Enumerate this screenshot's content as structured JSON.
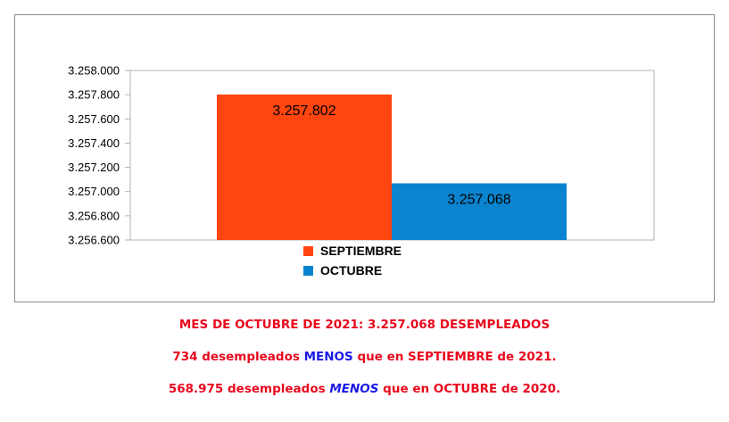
{
  "colors": {
    "septiembre": "#ff4510",
    "octubre": "#0a84cf",
    "note_red": "#e8091e",
    "note_blue": "#1a1ae6"
  },
  "chart_data": {
    "type": "bar",
    "categories": [
      ""
    ],
    "series": [
      {
        "name": "SEPTIEMBRE",
        "values": [
          3257802
        ],
        "label": "3.257.802",
        "color": "#ff4510"
      },
      {
        "name": "OCTUBRE",
        "values": [
          3257068
        ],
        "label": "3.257.068",
        "color": "#0a84cf"
      }
    ],
    "ylim": [
      3256600,
      3258000
    ],
    "yticks": [
      {
        "value": 3256600,
        "label": "3.256.600"
      },
      {
        "value": 3256800,
        "label": "3.256.800"
      },
      {
        "value": 3257000,
        "label": "3.257.000"
      },
      {
        "value": 3257200,
        "label": "3.257.200"
      },
      {
        "value": 3257400,
        "label": "3.257.400"
      },
      {
        "value": 3257600,
        "label": "3.257.600"
      },
      {
        "value": 3257800,
        "label": "3.257.800"
      },
      {
        "value": 3258000,
        "label": "3.258.000"
      }
    ],
    "grid": false,
    "legend": "bottom"
  },
  "notes": {
    "line1": "MES DE OCTUBRE DE 2021: 3.257.068 DESEMPLEADOS",
    "line2": {
      "before": "734 desempleados ",
      "emphasis": "MENOS",
      "after": " que en SEPTIEMBRE de 2021."
    },
    "line3": {
      "before": "568.975 desempleados ",
      "emphasis": "MENOS",
      "after": " que en OCTUBRE de 2020."
    }
  }
}
